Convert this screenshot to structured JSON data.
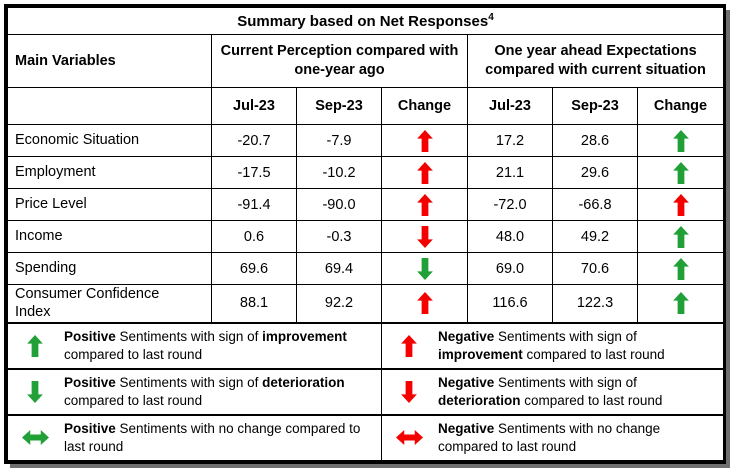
{
  "title": {
    "text": "Summary based on Net Responses",
    "superscript": "4"
  },
  "colors": {
    "positive": "#21a038",
    "negative": "#f40000"
  },
  "columns": {
    "main": "Main Variables",
    "current_group": "Current Perception compared with one-year ago",
    "ahead_group": "One year ahead Expectations compared with current situation",
    "sub": [
      "Jul-23",
      "Sep-23",
      "Change"
    ]
  },
  "rows": [
    {
      "label": "Economic Situation",
      "current_jul": "-20.7",
      "current_sep": "-7.9",
      "current_change": "up-negative",
      "ahead_jul": "17.2",
      "ahead_sep": "28.6",
      "ahead_change": "up-positive"
    },
    {
      "label": "Employment",
      "current_jul": "-17.5",
      "current_sep": "-10.2",
      "current_change": "up-negative",
      "ahead_jul": "21.1",
      "ahead_sep": "29.6",
      "ahead_change": "up-positive"
    },
    {
      "label": "Price Level",
      "current_jul": "-91.4",
      "current_sep": "-90.0",
      "current_change": "up-negative",
      "ahead_jul": "-72.0",
      "ahead_sep": "-66.8",
      "ahead_change": "up-negative"
    },
    {
      "label": "Income",
      "current_jul": "0.6",
      "current_sep": "-0.3",
      "current_change": "down-negative",
      "ahead_jul": "48.0",
      "ahead_sep": "49.2",
      "ahead_change": "up-positive"
    },
    {
      "label": "Spending",
      "current_jul": "69.6",
      "current_sep": "69.4",
      "current_change": "down-positive",
      "ahead_jul": "69.0",
      "ahead_sep": "70.6",
      "ahead_change": "up-positive"
    },
    {
      "label": "Consumer Confidence Index",
      "current_jul": "88.1",
      "current_sep": "92.2",
      "current_change": "up-negative",
      "ahead_jul": "116.6",
      "ahead_sep": "122.3",
      "ahead_change": "up-positive"
    }
  ],
  "legend": {
    "positive": [
      {
        "arrow": "up-positive",
        "segments": [
          {
            "text": "Positive",
            "bold": true
          },
          {
            "text": " Sentiments with sign of ",
            "bold": false
          },
          {
            "text": "improvement",
            "bold": true
          },
          {
            "text": " compared to last round",
            "bold": false
          }
        ]
      },
      {
        "arrow": "down-positive",
        "segments": [
          {
            "text": "Positive",
            "bold": true
          },
          {
            "text": " Sentiments with sign of ",
            "bold": false
          },
          {
            "text": "deterioration",
            "bold": true
          },
          {
            "text": " compared to last round",
            "bold": false
          }
        ]
      },
      {
        "arrow": "both-positive",
        "segments": [
          {
            "text": "Positive",
            "bold": true
          },
          {
            "text": " Sentiments with no change compared to last round",
            "bold": false
          }
        ]
      }
    ],
    "negative": [
      {
        "arrow": "up-negative",
        "segments": [
          {
            "text": "Negative",
            "bold": true
          },
          {
            "text": " Sentiments with sign of ",
            "bold": false
          },
          {
            "text": "improvement",
            "bold": true
          },
          {
            "text": " compared to last round",
            "bold": false
          }
        ]
      },
      {
        "arrow": "down-negative",
        "segments": [
          {
            "text": "Negative",
            "bold": true
          },
          {
            "text": " Sentiments with sign of ",
            "bold": false
          },
          {
            "text": "deterioration",
            "bold": true
          },
          {
            "text": " compared to last round",
            "bold": false
          }
        ]
      },
      {
        "arrow": "both-negative",
        "segments": [
          {
            "text": "Negative",
            "bold": true
          },
          {
            "text": " Sentiments with no change compared to last round",
            "bold": false
          }
        ]
      }
    ]
  }
}
